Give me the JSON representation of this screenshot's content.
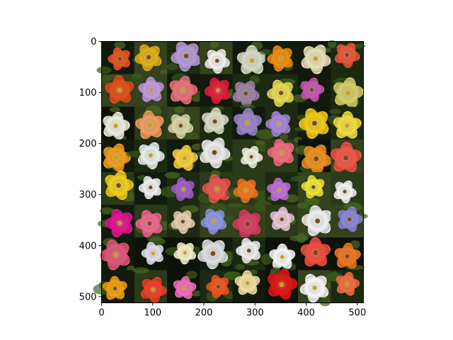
{
  "image_axes": {
    "x_ticks": [
      "0",
      "100",
      "200",
      "300",
      "400",
      "500"
    ],
    "y_ticks": [
      "0",
      "100",
      "200",
      "300",
      "400",
      "500"
    ],
    "xlim": [
      0,
      512
    ],
    "ylim": [
      512,
      0
    ]
  },
  "grid": {
    "rows": 8,
    "cols": 8,
    "description": "8x8 grid of generated flower images",
    "tiles": [
      [
        "#e8561f",
        "#e0b21a",
        "#b79ad6",
        "#f3f1ec",
        "#d8dcc4",
        "#f08e12",
        "#e8e2b8",
        "#e85a3a"
      ],
      [
        "#e0521d",
        "#c49be0",
        "#e9747a",
        "#e0203c",
        "#a086a8",
        "#e6dc55",
        "#c85ab4",
        "#d6cf6a"
      ],
      [
        "#eeeedd",
        "#f0a060",
        "#d8d8a8",
        "#dcdcc8",
        "#9a88c8",
        "#a888d8",
        "#f4cc18",
        "#f4e040"
      ],
      [
        "#f0a020",
        "#e8f0e8",
        "#f4d040",
        "#ececec",
        "#f0f0e0",
        "#f07080",
        "#f09020",
        "#f05848"
      ],
      [
        "#f0d020",
        "#f0f0f0",
        "#a060c8",
        "#e85850",
        "#f07820",
        "#c070d8",
        "#f0e838",
        "#f4f4f0"
      ],
      [
        "#e01890",
        "#f06890",
        "#e8d0b0",
        "#9098e0",
        "#d84060",
        "#e8c8d8",
        "#f0f0f0",
        "#9088d8"
      ],
      [
        "#e05878",
        "#e0e0e8",
        "#f4f0c8",
        "#e0e0e0",
        "#f0f0f0",
        "#f8f8f8",
        "#f05040",
        "#f07820"
      ],
      [
        "#f0a010",
        "#f04028",
        "#f070b8",
        "#f05820",
        "#f0e0a0",
        "#e01818",
        "#f8f8f8",
        "#f07040"
      ]
    ]
  }
}
